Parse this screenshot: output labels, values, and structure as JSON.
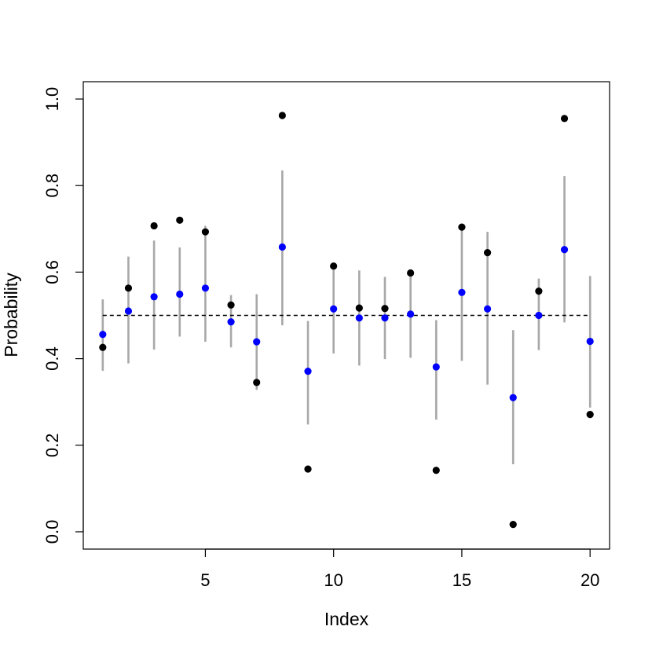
{
  "chart_data": {
    "type": "scatter",
    "xlabel": "Index",
    "ylabel": "Probability",
    "xlim": [
      0.24,
      20.76
    ],
    "ylim": [
      -0.04,
      1.04
    ],
    "xticks": [
      5,
      10,
      15,
      20
    ],
    "yticks": [
      0.0,
      0.2,
      0.4,
      0.6,
      0.8,
      1.0
    ],
    "xtick_labels": [
      "5",
      "10",
      "15",
      "20"
    ],
    "ytick_labels": [
      "0.0",
      "0.2",
      "0.4",
      "0.6",
      "0.8",
      "1.0"
    ],
    "reference_line": {
      "y": 0.5,
      "x_from": 1,
      "x_to": 20,
      "style": "dashed"
    },
    "colors": {
      "observed": "#000000",
      "estimate": "#0000ff",
      "interval": "#a8a8a8",
      "reference": "#000000"
    },
    "series": [
      {
        "role": "observed",
        "x": [
          1,
          2,
          3,
          4,
          5,
          6,
          7,
          8,
          9,
          10,
          11,
          12,
          13,
          14,
          15,
          16,
          17,
          18,
          19,
          20
        ],
        "values": [
          0.426,
          0.563,
          0.707,
          0.72,
          0.693,
          0.524,
          0.345,
          0.962,
          0.145,
          0.614,
          0.517,
          0.516,
          0.598,
          0.142,
          0.704,
          0.645,
          0.017,
          0.556,
          0.955,
          0.271
        ]
      },
      {
        "role": "estimate",
        "x": [
          1,
          2,
          3,
          4,
          5,
          6,
          7,
          8,
          9,
          10,
          11,
          12,
          13,
          14,
          15,
          16,
          17,
          18,
          19,
          20
        ],
        "values": [
          0.456,
          0.51,
          0.543,
          0.549,
          0.563,
          0.485,
          0.439,
          0.658,
          0.371,
          0.515,
          0.494,
          0.494,
          0.503,
          0.381,
          0.553,
          0.515,
          0.31,
          0.5,
          0.652,
          0.44
        ]
      },
      {
        "role": "interval",
        "x": [
          1,
          2,
          3,
          4,
          5,
          6,
          7,
          8,
          9,
          10,
          11,
          12,
          13,
          14,
          15,
          16,
          17,
          18,
          19,
          20
        ],
        "lower": [
          0.372,
          0.389,
          0.421,
          0.451,
          0.439,
          0.426,
          0.328,
          0.477,
          0.248,
          0.412,
          0.384,
          0.399,
          0.402,
          0.259,
          0.395,
          0.34,
          0.156,
          0.42,
          0.484,
          0.287
        ],
        "upper": [
          0.537,
          0.636,
          0.673,
          0.657,
          0.707,
          0.547,
          0.549,
          0.835,
          0.487,
          0.617,
          0.604,
          0.589,
          0.603,
          0.489,
          0.708,
          0.693,
          0.466,
          0.585,
          0.822,
          0.591
        ]
      }
    ]
  }
}
